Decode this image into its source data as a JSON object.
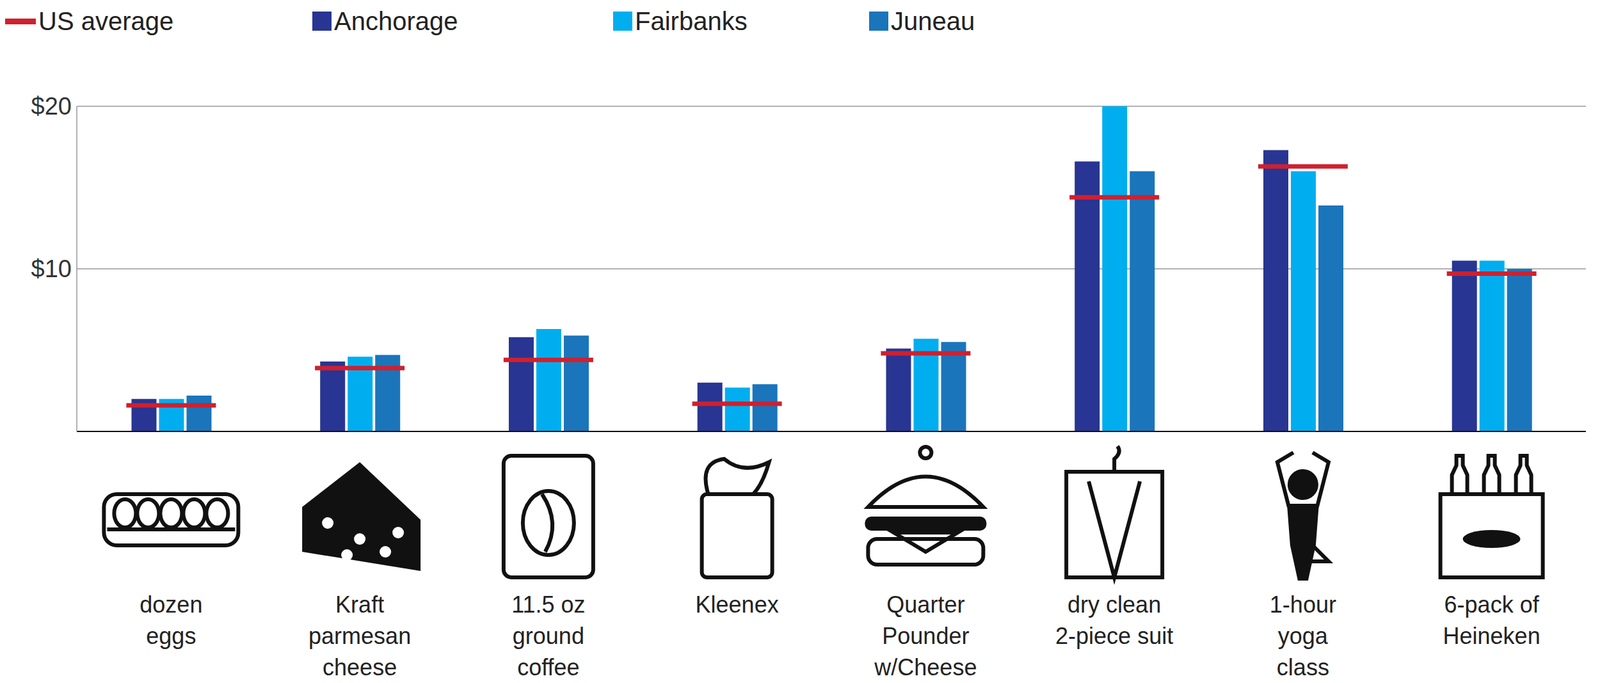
{
  "chart_data": {
    "type": "bar",
    "categories": [
      "dozen\neggs",
      "Kraft\nparmesan\ncheese",
      "11.5 oz\nground\ncoffee",
      "Kleenex",
      "Quarter\nPounder\nw/Cheese",
      "dry clean\n2-piece suit",
      "1-hour\nyoga\nclass",
      "6-pack of\nHeineken"
    ],
    "series": [
      {
        "name": "US average",
        "color": "#d0202e",
        "type": "marker",
        "values": [
          1.6,
          3.9,
          4.4,
          1.7,
          4.8,
          14.4,
          16.3,
          9.7
        ]
      },
      {
        "name": "Anchorage",
        "color": "#283592",
        "values": [
          2.0,
          4.3,
          5.8,
          3.0,
          5.1,
          16.6,
          17.3,
          10.5
        ]
      },
      {
        "name": "Fairbanks",
        "color": "#00aeef",
        "values": [
          2.0,
          4.6,
          6.3,
          2.7,
          5.7,
          20.0,
          16.0,
          10.5
        ]
      },
      {
        "name": "Juneau",
        "color": "#1a75bb",
        "values": [
          2.2,
          4.7,
          5.9,
          2.9,
          5.5,
          16.0,
          13.9,
          10.0
        ]
      }
    ],
    "ylim": [
      0,
      20
    ],
    "yticks": [
      {
        "value": 10,
        "label": "$10"
      },
      {
        "value": 20,
        "label": "$20"
      }
    ],
    "grid": true,
    "legend": "top left"
  }
}
